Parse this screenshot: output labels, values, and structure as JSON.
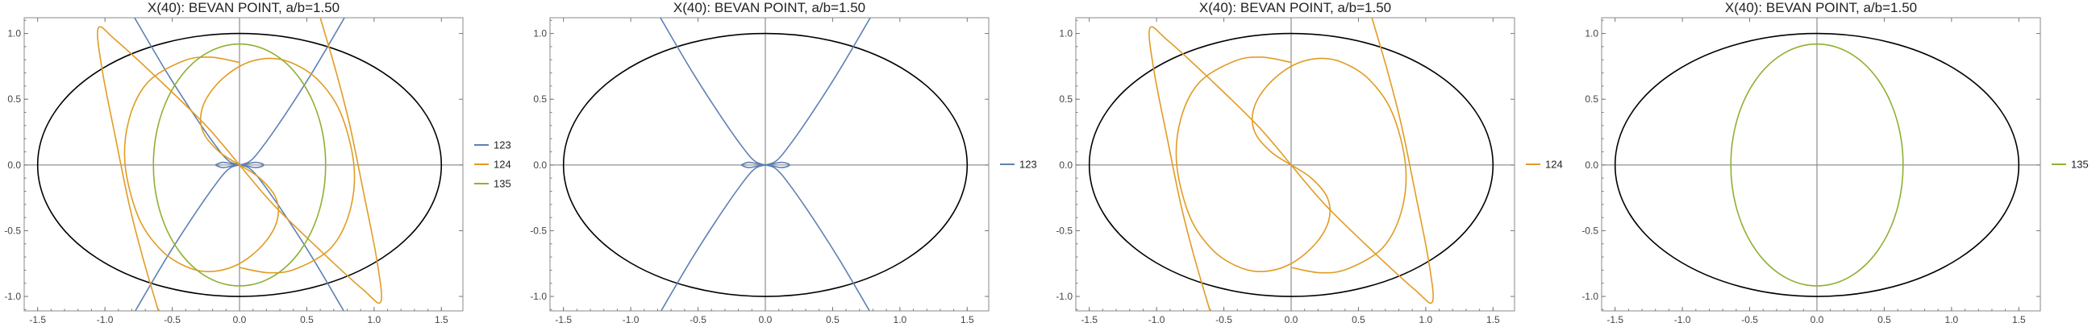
{
  "chart_data": [
    {
      "type": "line",
      "title": "X(40): BEVAN POINT, a/b=1.50",
      "xlim": [
        -1.6,
        1.66
      ],
      "ylim": [
        -1.11,
        1.12
      ],
      "xticks": [
        -1.5,
        -1.0,
        -0.5,
        0.0,
        0.5,
        1.0,
        1.5
      ],
      "yticks": [
        -1.0,
        -0.5,
        0.0,
        0.5,
        1.0
      ],
      "xtick_labels": [
        "-1.5",
        "-1.0",
        "-0.5",
        "0.0",
        "0.5",
        "1.0",
        "1.5"
      ],
      "ytick_labels": [
        "-1.0",
        "-0.5",
        "0.0",
        "0.5",
        "1.0"
      ],
      "ellipse": {
        "a": 1.5,
        "b": 1.0,
        "color": "#000000"
      },
      "series": [
        {
          "name": "123",
          "color": "#5E81B5",
          "curve": "c123"
        },
        {
          "name": "124",
          "color": "#E19C24",
          "curve": "c124"
        },
        {
          "name": "135",
          "color": "#8FB032",
          "curve": "c135"
        }
      ],
      "legend_position": "right"
    },
    {
      "type": "line",
      "title": "X(40): BEVAN POINT, a/b=1.50",
      "xlim": [
        -1.6,
        1.66
      ],
      "ylim": [
        -1.11,
        1.12
      ],
      "xticks": [
        -1.5,
        -1.0,
        -0.5,
        0.0,
        0.5,
        1.0,
        1.5
      ],
      "yticks": [
        -1.0,
        -0.5,
        0.0,
        0.5,
        1.0
      ],
      "xtick_labels": [
        "-1.5",
        "-1.0",
        "-0.5",
        "0.0",
        "0.5",
        "1.0",
        "1.5"
      ],
      "ytick_labels": [
        "-1.0",
        "-0.5",
        "0.0",
        "0.5",
        "1.0"
      ],
      "ellipse": {
        "a": 1.5,
        "b": 1.0,
        "color": "#000000"
      },
      "series": [
        {
          "name": "123",
          "color": "#5E81B5",
          "curve": "c123"
        }
      ],
      "legend_position": "right"
    },
    {
      "type": "line",
      "title": "X(40): BEVAN POINT, a/b=1.50",
      "xlim": [
        -1.6,
        1.66
      ],
      "ylim": [
        -1.11,
        1.12
      ],
      "xticks": [
        -1.5,
        -1.0,
        -0.5,
        0.0,
        0.5,
        1.0,
        1.5
      ],
      "yticks": [
        -1.0,
        -0.5,
        0.0,
        0.5,
        1.0
      ],
      "xtick_labels": [
        "-1.5",
        "-1.0",
        "-0.5",
        "0.0",
        "0.5",
        "1.0",
        "1.5"
      ],
      "ytick_labels": [
        "-1.0",
        "-0.5",
        "0.0",
        "0.5",
        "1.0"
      ],
      "ellipse": {
        "a": 1.5,
        "b": 1.0,
        "color": "#000000"
      },
      "series": [
        {
          "name": "124",
          "color": "#E19C24",
          "curve": "c124"
        }
      ],
      "legend_position": "right"
    },
    {
      "type": "line",
      "title": "X(40): BEVAN POINT, a/b=1.50",
      "xlim": [
        -1.6,
        1.66
      ],
      "ylim": [
        -1.11,
        1.12
      ],
      "xticks": [
        -1.5,
        -1.0,
        -0.5,
        0.0,
        0.5,
        1.0,
        1.5
      ],
      "yticks": [
        -1.0,
        -0.5,
        0.0,
        0.5,
        1.0
      ],
      "xtick_labels": [
        "-1.5",
        "-1.0",
        "-0.5",
        "0.0",
        "0.5",
        "1.0",
        "1.5"
      ],
      "ytick_labels": [
        "-1.0",
        "-0.5",
        "0.0",
        "0.5",
        "1.0"
      ],
      "ellipse": {
        "a": 1.5,
        "b": 1.0,
        "color": "#000000"
      },
      "series": [
        {
          "name": "135",
          "color": "#8FB032",
          "curve": "c135"
        }
      ],
      "legend_position": "right"
    }
  ],
  "curves": {
    "c123": [
      {
        "part": "upper-left",
        "points": [
          [
            -0.78,
            1.12
          ],
          [
            -0.55,
            0.72
          ],
          [
            -0.35,
            0.4
          ],
          [
            -0.18,
            0.15
          ],
          [
            -0.08,
            0.03
          ],
          [
            0.0,
            0.0
          ]
        ]
      },
      {
        "part": "upper-right",
        "points": [
          [
            0.0,
            0.0
          ],
          [
            0.08,
            0.03
          ],
          [
            0.18,
            0.15
          ],
          [
            0.35,
            0.4
          ],
          [
            0.55,
            0.72
          ],
          [
            0.78,
            1.12
          ]
        ]
      },
      {
        "part": "lower-left",
        "points": [
          [
            0.0,
            0.0
          ],
          [
            -0.08,
            -0.03
          ],
          [
            -0.18,
            -0.15
          ],
          [
            -0.35,
            -0.4
          ],
          [
            -0.55,
            -0.72
          ],
          [
            -0.78,
            -1.12
          ]
        ]
      },
      {
        "part": "lower-right",
        "points": [
          [
            0.0,
            0.0
          ],
          [
            0.08,
            -0.03
          ],
          [
            0.18,
            -0.15
          ],
          [
            0.35,
            -0.4
          ],
          [
            0.55,
            -0.72
          ],
          [
            0.78,
            -1.12
          ]
        ]
      },
      {
        "part": "loop",
        "points": [
          [
            -0.18,
            0.0
          ],
          [
            -0.12,
            0.02
          ],
          [
            0.0,
            0.0
          ],
          [
            0.12,
            0.02
          ],
          [
            0.18,
            0.0
          ],
          [
            0.12,
            -0.02
          ],
          [
            0.0,
            0.0
          ],
          [
            -0.12,
            -0.02
          ],
          [
            -0.18,
            0.0
          ]
        ]
      }
    ],
    "c124": [
      {
        "part": "outer-left",
        "points": [
          [
            0.0,
            0.0
          ],
          [
            -0.25,
            0.3
          ],
          [
            -0.6,
            0.65
          ],
          [
            -0.92,
            0.95
          ],
          [
            -1.05,
            1.04
          ],
          [
            -1.02,
            0.72
          ],
          [
            -0.92,
            0.2
          ],
          [
            -0.82,
            -0.3
          ],
          [
            -0.72,
            -0.7
          ],
          [
            -0.6,
            -1.12
          ]
        ]
      },
      {
        "part": "outer-right",
        "points": [
          [
            0.0,
            0.0
          ],
          [
            0.25,
            -0.3
          ],
          [
            0.6,
            -0.65
          ],
          [
            0.92,
            -0.95
          ],
          [
            1.05,
            -1.04
          ],
          [
            1.02,
            -0.72
          ],
          [
            0.92,
            -0.2
          ],
          [
            0.82,
            0.3
          ],
          [
            0.72,
            0.7
          ],
          [
            0.6,
            1.12
          ]
        ]
      },
      {
        "part": "loop-upper",
        "points": [
          [
            0.0,
            0.0
          ],
          [
            -0.15,
            0.1
          ],
          [
            -0.27,
            0.25
          ],
          [
            -0.28,
            0.42
          ],
          [
            -0.18,
            0.6
          ],
          [
            0.0,
            0.75
          ],
          [
            0.2,
            0.81
          ],
          [
            0.38,
            0.78
          ],
          [
            0.58,
            0.65
          ],
          [
            0.75,
            0.4
          ],
          [
            0.85,
            0.0
          ],
          [
            0.82,
            -0.35
          ],
          [
            0.68,
            -0.63
          ],
          [
            0.42,
            -0.79
          ],
          [
            0.22,
            -0.82
          ],
          [
            0.0,
            -0.78
          ]
        ]
      },
      {
        "part": "loop-lower",
        "points": [
          [
            0.0,
            0.0
          ],
          [
            0.15,
            -0.1
          ],
          [
            0.27,
            -0.25
          ],
          [
            0.28,
            -0.42
          ],
          [
            0.18,
            -0.6
          ],
          [
            0.0,
            -0.75
          ],
          [
            -0.2,
            -0.81
          ],
          [
            -0.38,
            -0.78
          ],
          [
            -0.58,
            -0.65
          ],
          [
            -0.75,
            -0.4
          ],
          [
            -0.85,
            0.0
          ],
          [
            -0.82,
            0.35
          ],
          [
            -0.68,
            0.63
          ],
          [
            -0.42,
            0.79
          ],
          [
            -0.22,
            0.82
          ],
          [
            0.0,
            0.78
          ]
        ]
      }
    ],
    "c135": [
      {
        "part": "ellipse",
        "cx": 0.0,
        "cy": 0.0,
        "rx": 0.64,
        "ry": 0.92
      }
    ]
  }
}
